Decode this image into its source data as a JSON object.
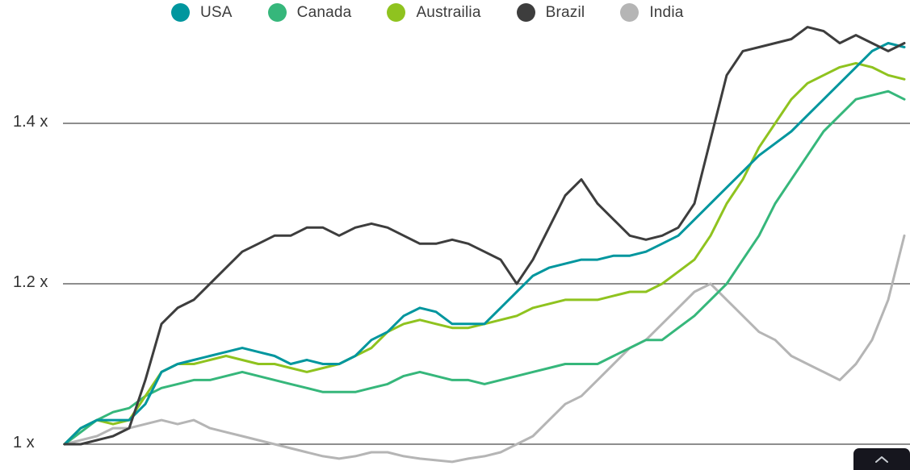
{
  "y_axis": {
    "labels": [
      "1.4 x",
      "1.2 x",
      "1 x"
    ],
    "values": [
      1.4,
      1.2,
      1.0
    ]
  },
  "chart_style": {
    "grid_color": "#4a4a4a",
    "text_color": "#3c3c3c",
    "scroll_button_bg": "#16161e",
    "scroll_chevron_color": "#c9cdd2"
  },
  "scroll_button": {
    "icon": "chevron-up"
  },
  "chart_data": {
    "type": "line",
    "title": "",
    "xlabel": "",
    "ylabel": "",
    "ylim": [
      0.96,
      1.56
    ],
    "grid": true,
    "gridlines": [
      1.0,
      1.2,
      1.4
    ],
    "legend_position": "top",
    "x_sampling": "uniform, 53 points across full width",
    "series": [
      {
        "name": "USA",
        "color": "#00969e",
        "values": [
          1.0,
          1.02,
          1.03,
          1.03,
          1.03,
          1.05,
          1.09,
          1.1,
          1.105,
          1.11,
          1.115,
          1.12,
          1.115,
          1.11,
          1.1,
          1.105,
          1.1,
          1.1,
          1.11,
          1.13,
          1.14,
          1.16,
          1.17,
          1.165,
          1.15,
          1.15,
          1.15,
          1.17,
          1.19,
          1.21,
          1.22,
          1.225,
          1.23,
          1.23,
          1.235,
          1.235,
          1.24,
          1.25,
          1.26,
          1.28,
          1.3,
          1.32,
          1.34,
          1.36,
          1.375,
          1.39,
          1.41,
          1.43,
          1.45,
          1.47,
          1.49,
          1.5,
          1.495
        ]
      },
      {
        "name": "Canada",
        "color": "#36b77b",
        "values": [
          1.0,
          1.015,
          1.03,
          1.04,
          1.045,
          1.06,
          1.07,
          1.075,
          1.08,
          1.08,
          1.085,
          1.09,
          1.085,
          1.08,
          1.075,
          1.07,
          1.065,
          1.065,
          1.065,
          1.07,
          1.075,
          1.085,
          1.09,
          1.085,
          1.08,
          1.08,
          1.075,
          1.08,
          1.085,
          1.09,
          1.095,
          1.1,
          1.1,
          1.1,
          1.11,
          1.12,
          1.13,
          1.13,
          1.145,
          1.16,
          1.18,
          1.2,
          1.23,
          1.26,
          1.3,
          1.33,
          1.36,
          1.39,
          1.41,
          1.43,
          1.435,
          1.44,
          1.43
        ]
      },
      {
        "name": "Austrailia",
        "color": "#8fc31f",
        "values": [
          1.0,
          1.02,
          1.03,
          1.025,
          1.03,
          1.06,
          1.09,
          1.1,
          1.1,
          1.105,
          1.11,
          1.105,
          1.1,
          1.1,
          1.095,
          1.09,
          1.095,
          1.1,
          1.11,
          1.12,
          1.14,
          1.15,
          1.155,
          1.15,
          1.145,
          1.145,
          1.15,
          1.155,
          1.16,
          1.17,
          1.175,
          1.18,
          1.18,
          1.18,
          1.185,
          1.19,
          1.19,
          1.2,
          1.215,
          1.23,
          1.26,
          1.3,
          1.33,
          1.37,
          1.4,
          1.43,
          1.45,
          1.46,
          1.47,
          1.475,
          1.47,
          1.46,
          1.455
        ]
      },
      {
        "name": "Brazil",
        "color": "#3d3d3d",
        "values": [
          1.0,
          1.0,
          1.005,
          1.01,
          1.02,
          1.08,
          1.15,
          1.17,
          1.18,
          1.2,
          1.22,
          1.24,
          1.25,
          1.26,
          1.26,
          1.27,
          1.27,
          1.26,
          1.27,
          1.275,
          1.27,
          1.26,
          1.25,
          1.25,
          1.255,
          1.25,
          1.24,
          1.23,
          1.2,
          1.23,
          1.27,
          1.31,
          1.33,
          1.3,
          1.28,
          1.26,
          1.255,
          1.26,
          1.27,
          1.3,
          1.38,
          1.46,
          1.49,
          1.495,
          1.5,
          1.505,
          1.52,
          1.515,
          1.5,
          1.51,
          1.5,
          1.49,
          1.5
        ]
      },
      {
        "name": "India",
        "color": "#b5b5b5",
        "values": [
          1.0,
          1.005,
          1.01,
          1.02,
          1.02,
          1.025,
          1.03,
          1.025,
          1.03,
          1.02,
          1.015,
          1.01,
          1.005,
          1.0,
          0.995,
          0.99,
          0.985,
          0.982,
          0.985,
          0.99,
          0.99,
          0.985,
          0.982,
          0.98,
          0.978,
          0.982,
          0.985,
          0.99,
          1.0,
          1.01,
          1.03,
          1.05,
          1.06,
          1.08,
          1.1,
          1.12,
          1.13,
          1.15,
          1.17,
          1.19,
          1.2,
          1.18,
          1.16,
          1.14,
          1.13,
          1.11,
          1.1,
          1.09,
          1.08,
          1.1,
          1.13,
          1.18,
          1.26
        ]
      }
    ]
  }
}
